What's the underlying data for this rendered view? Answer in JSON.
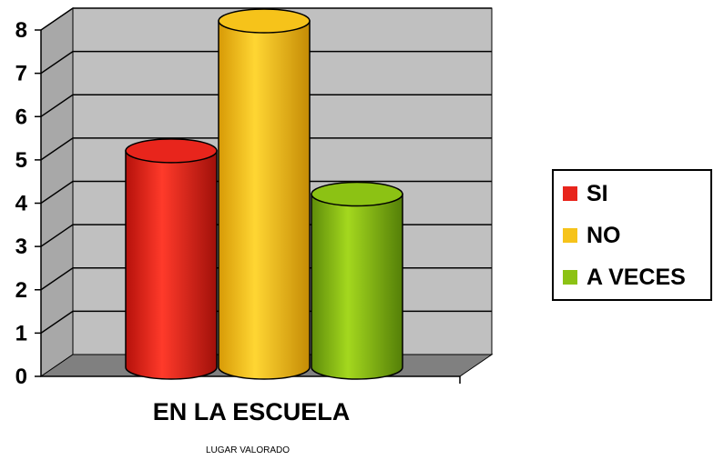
{
  "chart_data": {
    "type": "bar",
    "style": "3d-cylinder",
    "categories": [
      "EN LA ESCUELA"
    ],
    "series": [
      {
        "name": "SI",
        "values": [
          5
        ],
        "color": "#e8251c"
      },
      {
        "name": "NO",
        "values": [
          8
        ],
        "color": "#f6c31a"
      },
      {
        "name": "A VECES",
        "values": [
          4
        ],
        "color": "#8cc214"
      }
    ],
    "xlabel": "LUGAR VALORADO",
    "ylabel": "",
    "ylim": [
      0,
      8
    ],
    "yticks": [
      "0",
      "1",
      "2",
      "3",
      "4",
      "5",
      "6",
      "7",
      "8"
    ],
    "grid": true,
    "legend_position": "right",
    "wall_color": "#c0c0c0",
    "floor_color": "#808080"
  }
}
